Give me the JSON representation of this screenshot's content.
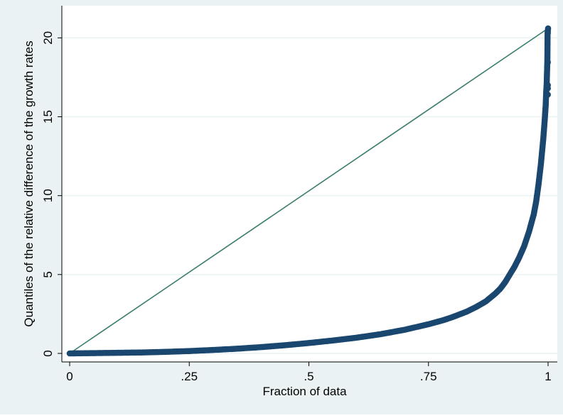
{
  "chart_data": {
    "type": "scatter",
    "title": "",
    "xlabel": "Fraction of data",
    "ylabel": "Quantiles of the relative difference of the growth rates",
    "xlim": [
      0,
      1
    ],
    "ylim": [
      0,
      20.6
    ],
    "xticks": [
      {
        "value": 0,
        "label": "0"
      },
      {
        "value": 0.25,
        "label": ".25"
      },
      {
        "value": 0.5,
        "label": ".5"
      },
      {
        "value": 0.75,
        "label": ".75"
      },
      {
        "value": 1,
        "label": "1"
      }
    ],
    "yticks": [
      {
        "value": 0,
        "label": "0"
      },
      {
        "value": 5,
        "label": "5"
      },
      {
        "value": 10,
        "label": "10"
      },
      {
        "value": 15,
        "label": "15"
      },
      {
        "value": 20,
        "label": "20"
      }
    ],
    "grid": true,
    "reference_line": {
      "x": [
        0,
        1
      ],
      "y": [
        0,
        20.6
      ]
    },
    "series": [
      {
        "points": [
          [
            0.0,
            0.0
          ],
          [
            0.05,
            0.02
          ],
          [
            0.1,
            0.04
          ],
          [
            0.15,
            0.06
          ],
          [
            0.2,
            0.1
          ],
          [
            0.25,
            0.15
          ],
          [
            0.3,
            0.22
          ],
          [
            0.35,
            0.3
          ],
          [
            0.4,
            0.4
          ],
          [
            0.45,
            0.52
          ],
          [
            0.5,
            0.66
          ],
          [
            0.55,
            0.82
          ],
          [
            0.6,
            1.0
          ],
          [
            0.65,
            1.22
          ],
          [
            0.7,
            1.5
          ],
          [
            0.75,
            1.85
          ],
          [
            0.78,
            2.1
          ],
          [
            0.8,
            2.3
          ],
          [
            0.83,
            2.65
          ],
          [
            0.85,
            2.95
          ],
          [
            0.87,
            3.3
          ],
          [
            0.89,
            3.8
          ],
          [
            0.9,
            4.1
          ],
          [
            0.91,
            4.5
          ],
          [
            0.92,
            5.0
          ],
          [
            0.93,
            5.5
          ],
          [
            0.94,
            6.1
          ],
          [
            0.95,
            6.8
          ],
          [
            0.96,
            7.7
          ],
          [
            0.97,
            8.8
          ],
          [
            0.975,
            9.6
          ],
          [
            0.98,
            10.7
          ],
          [
            0.985,
            12.0
          ],
          [
            0.99,
            13.6
          ],
          [
            0.993,
            14.8
          ],
          [
            0.995,
            15.7
          ],
          [
            0.996,
            16.5
          ],
          [
            0.997,
            17.0
          ],
          [
            0.998,
            18.0
          ],
          [
            0.9985,
            18.5
          ],
          [
            0.999,
            20.3
          ],
          [
            1.0,
            20.6
          ]
        ]
      }
    ],
    "colors": {
      "outer_background": "#eaf2f3",
      "plot_background": "#ffffff",
      "grid": "#eaf2f3",
      "axis": "#000000",
      "points": "#1a476f",
      "reference_line": "#3a7d6e"
    }
  }
}
